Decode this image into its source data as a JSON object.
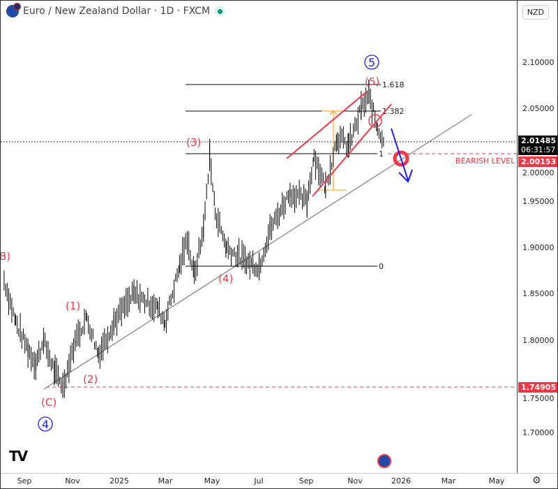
{
  "header": {
    "title": "Euro / New Zealand Dollar · 1D · FXCM",
    "currency": "NZD"
  },
  "colors": {
    "annotation_red": "#f23645",
    "wave_blue": "#1a1aff",
    "fib_orange": "#ff9800",
    "up": "#089981"
  },
  "price_axis": {
    "ticks": [
      "2.10000",
      "2.05000",
      "2.00000",
      "1.95000",
      "1.90000",
      "1.85000",
      "1.80000",
      "1.75000",
      "1.70000"
    ],
    "last_price": "2.01485",
    "countdown": "06:31:57",
    "bearish_level": "2.00153",
    "low_level": "1.74905"
  },
  "time_axis": {
    "ticks": [
      "Sep",
      "Nov",
      "2025",
      "Mar",
      "May",
      "Jul",
      "Sep",
      "Nov",
      "2026",
      "Mar",
      "May"
    ]
  },
  "annotations": {
    "bearish_label": "BEARISH LEVEL",
    "w1": "(1)",
    "w2": "(2)",
    "w3": "(3)",
    "w4": "(4)",
    "w5": "(5)",
    "wB": "(B)",
    "wC": "(C)",
    "big4": "4",
    "big5": "5",
    "fib": {
      "f1618": "1.618",
      "f1382": "1.382",
      "f1": "1",
      "f0": "0"
    }
  },
  "chart_data": {
    "type": "candlestick-approx",
    "symbol": "EURNZD",
    "timeframe": "1D",
    "ylim": [
      1.67,
      2.135
    ],
    "series": [
      [
        "2024-08-05",
        1.865
      ],
      [
        "2024-08-20",
        1.82
      ],
      [
        "2024-09-05",
        1.79
      ],
      [
        "2024-09-15",
        1.775
      ],
      [
        "2024-09-25",
        1.8
      ],
      [
        "2024-10-10",
        1.765
      ],
      [
        "2024-10-20",
        1.75
      ],
      [
        "2024-11-05",
        1.8
      ],
      [
        "2024-11-20",
        1.825
      ],
      [
        "2024-12-05",
        1.785
      ],
      [
        "2024-12-25",
        1.82
      ],
      [
        "2025-01-20",
        1.85
      ],
      [
        "2025-02-20",
        1.835
      ],
      [
        "2025-03-01",
        1.82
      ],
      [
        "2025-03-20",
        1.88
      ],
      [
        "2025-03-30",
        1.91
      ],
      [
        "2025-04-08",
        1.87
      ],
      [
        "2025-04-20",
        1.92
      ],
      [
        "2025-04-28",
        2.0
      ],
      [
        "2025-05-05",
        1.94
      ],
      [
        "2025-05-20",
        1.9
      ],
      [
        "2025-06-15",
        1.885
      ],
      [
        "2025-07-01",
        1.88
      ],
      [
        "2025-07-15",
        1.92
      ],
      [
        "2025-08-10",
        1.96
      ],
      [
        "2025-09-01",
        1.95
      ],
      [
        "2025-09-10",
        2.0
      ],
      [
        "2025-09-25",
        1.965
      ],
      [
        "2025-10-10",
        2.02
      ],
      [
        "2025-10-25",
        2.01
      ],
      [
        "2025-11-10",
        2.05
      ],
      [
        "2025-11-20",
        2.065
      ],
      [
        "2025-12-01",
        2.03
      ],
      [
        "2025-12-10",
        2.015
      ]
    ]
  }
}
